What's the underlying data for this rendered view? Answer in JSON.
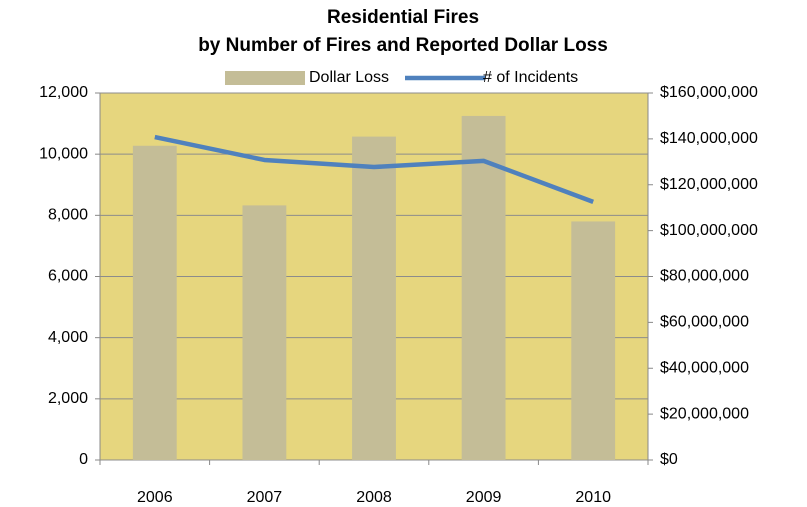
{
  "chart_data": {
    "type": "bar_line",
    "title": "Residential Fires",
    "subtitle": "by Number of Fires and Reported Dollar Loss",
    "categories": [
      "2006",
      "2007",
      "2008",
      "2009",
      "2010"
    ],
    "series": [
      {
        "name": "Dollar Loss",
        "type": "bar",
        "color": "#c4bd97",
        "axis": "y2",
        "values": [
          137000000,
          111000000,
          141000000,
          150000000,
          104000000
        ]
      },
      {
        "name": "# of Incidents",
        "type": "line",
        "color": "#4f81bd",
        "axis": "y",
        "values": [
          10560,
          9810,
          9580,
          9780,
          8440
        ]
      }
    ],
    "ylim": [
      0,
      12000
    ],
    "yticks": [
      0,
      {
        "value": 2000,
        "label": "2,000"
      },
      {
        "value": 4000,
        "label": "4,000"
      },
      {
        "value": 6000,
        "label": "6,000"
      },
      {
        "value": 8000,
        "label": "8,000"
      },
      {
        "value": 10000,
        "label": "10,000"
      },
      {
        "value": 12000,
        "label": "12,000"
      }
    ],
    "y2lim": [
      0,
      160000000
    ],
    "y2ticks": [
      {
        "value": 0,
        "label": "$0"
      },
      {
        "value": 20000000,
        "label": "$20,000,000"
      },
      {
        "value": 40000000,
        "label": "$40,000,000"
      },
      {
        "value": 60000000,
        "label": "$60,000,000"
      },
      {
        "value": 80000000,
        "label": "$80,000,000"
      },
      {
        "value": 100000000,
        "label": "$100,000,000"
      },
      {
        "value": 120000000,
        "label": "$120,000,000"
      },
      {
        "value": 140000000,
        "label": "$140,000,000"
      },
      {
        "value": 160000000,
        "label": "$160,000,000"
      }
    ],
    "grid": true,
    "plot_background": "#e6d67e",
    "legend": "top"
  }
}
